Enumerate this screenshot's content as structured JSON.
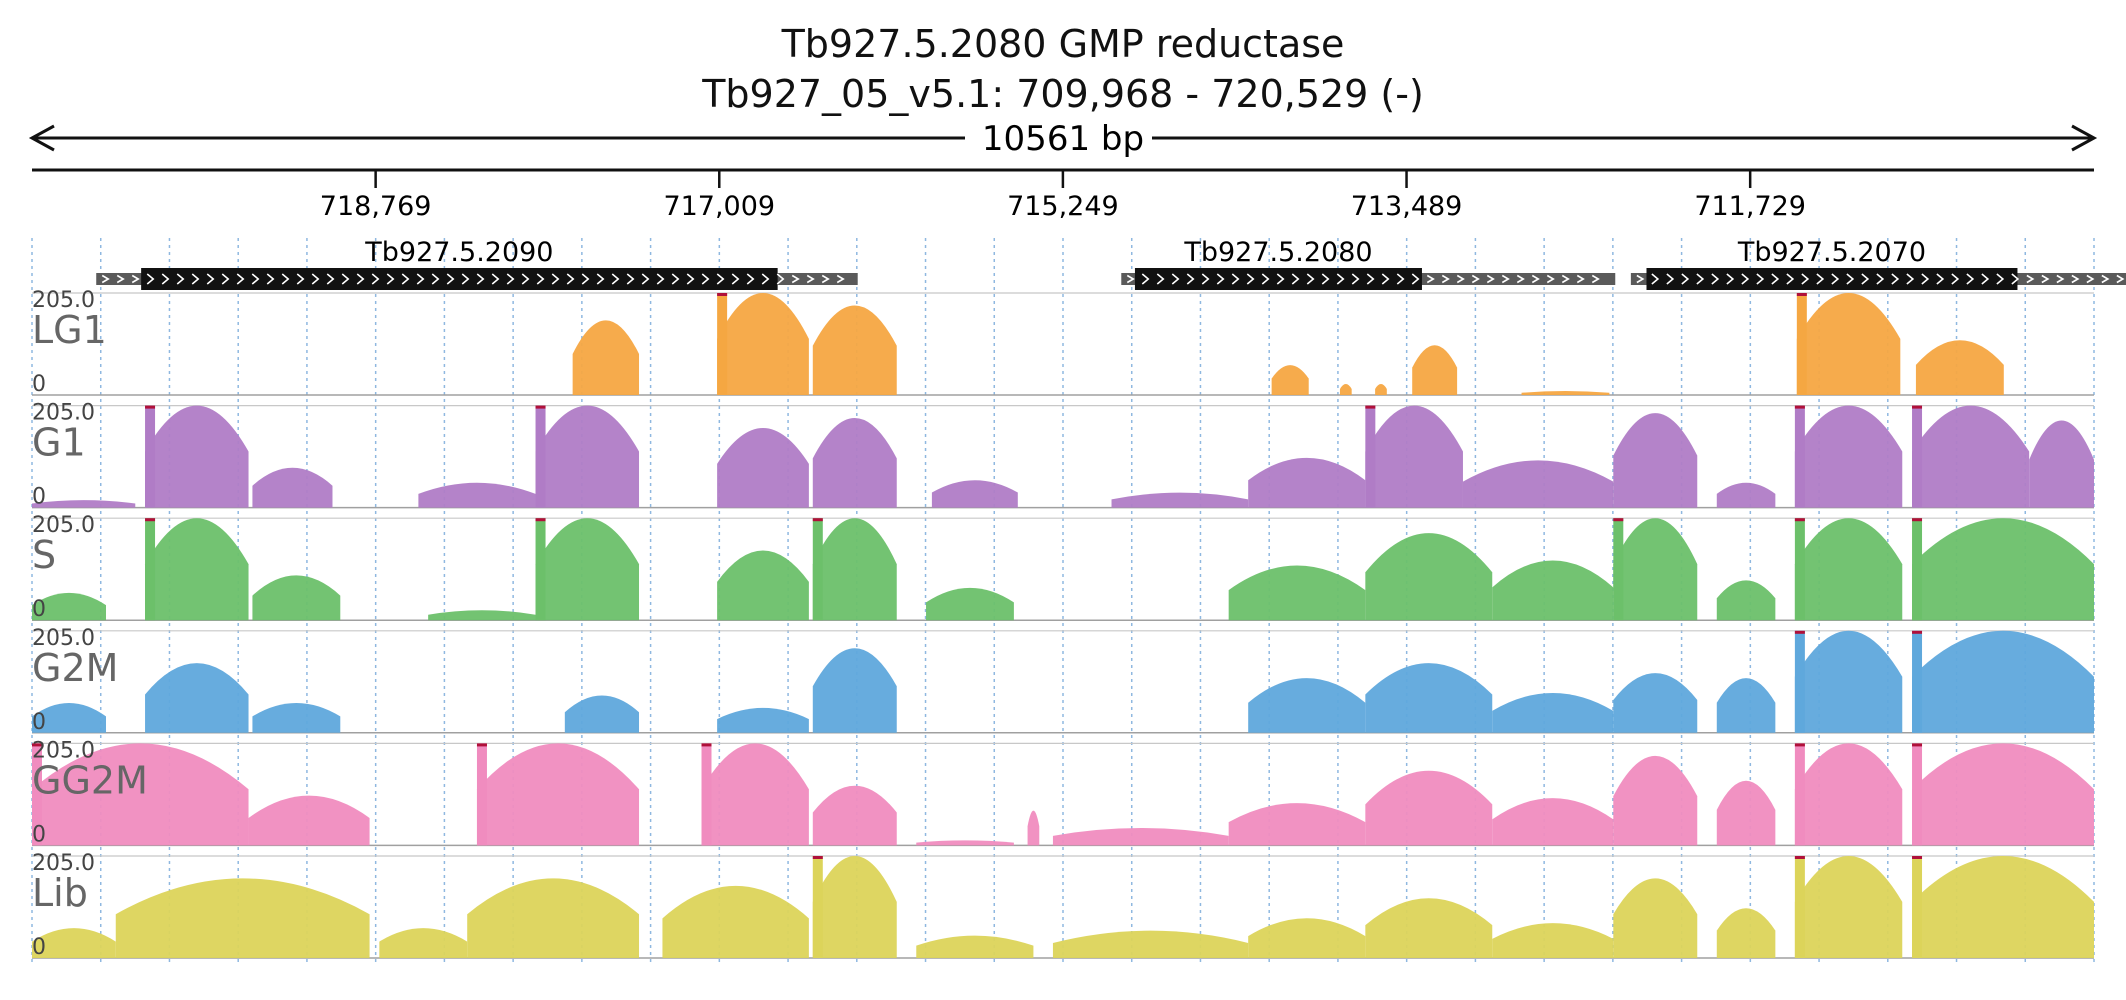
{
  "title": {
    "gene_line": "Tb927.5.2080  GMP reductase",
    "locus_line": "Tb927_05_v5.1: 709,968 - 720,529 (-)"
  },
  "span_label": "10561 bp",
  "axis": {
    "start": 720529,
    "end": 709968,
    "orientation": "reverse",
    "ticks": [
      {
        "value": 718769,
        "label": "718,769"
      },
      {
        "value": 717009,
        "label": "717,009"
      },
      {
        "value": 715249,
        "label": "715,249"
      },
      {
        "value": 713489,
        "label": "713,489"
      },
      {
        "value": 711729,
        "label": "711,729"
      }
    ]
  },
  "genes": [
    {
      "name": "Tb927.5.2090",
      "start": 720200,
      "end": 716300,
      "cds_start": 719970,
      "cds_end": 716710
    },
    {
      "name": "Tb927.5.2080",
      "start": 714950,
      "end": 712420,
      "cds_start": 714880,
      "cds_end": 713410
    },
    {
      "name": "Tb927.5.2070",
      "start": 712340,
      "end": 709780,
      "cds_start": 712260,
      "cds_end": 710360
    }
  ],
  "chart_data": {
    "type": "area",
    "x_range": [
      720529,
      709968
    ],
    "ylim": [
      0,
      205.0
    ],
    "y_tick_labels": [
      "205.0",
      "0"
    ],
    "series": [
      {
        "name": "LG1",
        "color": "#f5a742",
        "peaks": [
          {
            "start": 717760,
            "end": 717420,
            "height": 150
          },
          {
            "start": 717020,
            "end": 716550,
            "height": 205
          },
          {
            "start": 716530,
            "end": 716100,
            "height": 180
          },
          {
            "start": 714180,
            "end": 713990,
            "height": 60
          },
          {
            "start": 713830,
            "end": 713770,
            "height": 22
          },
          {
            "start": 713650,
            "end": 713590,
            "height": 22
          },
          {
            "start": 713460,
            "end": 713230,
            "height": 100
          },
          {
            "start": 712900,
            "end": 712450,
            "height": 8
          },
          {
            "start": 711490,
            "end": 710960,
            "height": 205
          },
          {
            "start": 710880,
            "end": 710430,
            "height": 110
          }
        ]
      },
      {
        "name": "G1",
        "color": "#b07cc6",
        "peaks": [
          {
            "start": 720529,
            "end": 720000,
            "height": 15
          },
          {
            "start": 719950,
            "end": 719420,
            "height": 205
          },
          {
            "start": 719400,
            "end": 718990,
            "height": 80
          },
          {
            "start": 718550,
            "end": 717950,
            "height": 50
          },
          {
            "start": 717950,
            "end": 717420,
            "height": 205
          },
          {
            "start": 717020,
            "end": 716550,
            "height": 160
          },
          {
            "start": 716530,
            "end": 716100,
            "height": 180
          },
          {
            "start": 715920,
            "end": 715480,
            "height": 55
          },
          {
            "start": 715000,
            "end": 714300,
            "height": 30
          },
          {
            "start": 714300,
            "end": 713700,
            "height": 100
          },
          {
            "start": 713700,
            "end": 713200,
            "height": 205
          },
          {
            "start": 713200,
            "end": 712430,
            "height": 95
          },
          {
            "start": 712430,
            "end": 712000,
            "height": 190
          },
          {
            "start": 711900,
            "end": 711600,
            "height": 50
          },
          {
            "start": 711500,
            "end": 710950,
            "height": 205
          },
          {
            "start": 710900,
            "end": 710300,
            "height": 205
          },
          {
            "start": 710300,
            "end": 709968,
            "height": 175
          }
        ]
      },
      {
        "name": "S",
        "color": "#6cc06a",
        "peaks": [
          {
            "start": 720529,
            "end": 720150,
            "height": 55
          },
          {
            "start": 719950,
            "end": 719420,
            "height": 205
          },
          {
            "start": 719400,
            "end": 718950,
            "height": 90
          },
          {
            "start": 718500,
            "end": 717950,
            "height": 20
          },
          {
            "start": 717950,
            "end": 717420,
            "height": 205
          },
          {
            "start": 717020,
            "end": 716550,
            "height": 140
          },
          {
            "start": 716530,
            "end": 716100,
            "height": 205
          },
          {
            "start": 715950,
            "end": 715500,
            "height": 65
          },
          {
            "start": 714400,
            "end": 713700,
            "height": 110
          },
          {
            "start": 713700,
            "end": 713050,
            "height": 175
          },
          {
            "start": 713050,
            "end": 712430,
            "height": 120
          },
          {
            "start": 712430,
            "end": 712000,
            "height": 205
          },
          {
            "start": 711900,
            "end": 711600,
            "height": 80
          },
          {
            "start": 711500,
            "end": 710950,
            "height": 205
          },
          {
            "start": 710900,
            "end": 709968,
            "height": 205
          }
        ]
      },
      {
        "name": "G2M",
        "color": "#5fa8dc",
        "peaks": [
          {
            "start": 720529,
            "end": 720150,
            "height": 60
          },
          {
            "start": 719950,
            "end": 719420,
            "height": 140
          },
          {
            "start": 719400,
            "end": 718950,
            "height": 60
          },
          {
            "start": 717800,
            "end": 717420,
            "height": 75
          },
          {
            "start": 717020,
            "end": 716550,
            "height": 50
          },
          {
            "start": 716530,
            "end": 716100,
            "height": 170
          },
          {
            "start": 714300,
            "end": 713700,
            "height": 110
          },
          {
            "start": 713700,
            "end": 713050,
            "height": 140
          },
          {
            "start": 713050,
            "end": 712430,
            "height": 80
          },
          {
            "start": 712430,
            "end": 712000,
            "height": 120
          },
          {
            "start": 711900,
            "end": 711600,
            "height": 110
          },
          {
            "start": 711500,
            "end": 710950,
            "height": 205
          },
          {
            "start": 710900,
            "end": 709968,
            "height": 205
          }
        ]
      },
      {
        "name": "GG2M",
        "color": "#f08cbf",
        "peaks": [
          {
            "start": 720529,
            "end": 719420,
            "height": 205
          },
          {
            "start": 719420,
            "end": 718800,
            "height": 100
          },
          {
            "start": 718250,
            "end": 717420,
            "height": 205
          },
          {
            "start": 717100,
            "end": 716550,
            "height": 205
          },
          {
            "start": 716530,
            "end": 716100,
            "height": 120
          },
          {
            "start": 716000,
            "end": 715500,
            "height": 10
          },
          {
            "start": 715430,
            "end": 715370,
            "height": 70
          },
          {
            "start": 715300,
            "end": 714400,
            "height": 35
          },
          {
            "start": 714400,
            "end": 713700,
            "height": 85
          },
          {
            "start": 713700,
            "end": 713050,
            "height": 150
          },
          {
            "start": 713050,
            "end": 712430,
            "height": 95
          },
          {
            "start": 712430,
            "end": 712000,
            "height": 180
          },
          {
            "start": 711900,
            "end": 711600,
            "height": 130
          },
          {
            "start": 711500,
            "end": 710950,
            "height": 205
          },
          {
            "start": 710900,
            "end": 709968,
            "height": 205
          }
        ]
      },
      {
        "name": "Lib",
        "color": "#dcd45a",
        "peaks": [
          {
            "start": 720529,
            "end": 720100,
            "height": 60
          },
          {
            "start": 720100,
            "end": 718800,
            "height": 160
          },
          {
            "start": 718750,
            "end": 718300,
            "height": 60
          },
          {
            "start": 718300,
            "end": 717420,
            "height": 160
          },
          {
            "start": 717300,
            "end": 716550,
            "height": 145
          },
          {
            "start": 716530,
            "end": 716100,
            "height": 205
          },
          {
            "start": 716000,
            "end": 715400,
            "height": 45
          },
          {
            "start": 715300,
            "end": 714300,
            "height": 55
          },
          {
            "start": 714300,
            "end": 713700,
            "height": 80
          },
          {
            "start": 713700,
            "end": 713050,
            "height": 120
          },
          {
            "start": 713050,
            "end": 712430,
            "height": 70
          },
          {
            "start": 712430,
            "end": 712000,
            "height": 160
          },
          {
            "start": 711900,
            "end": 711600,
            "height": 100
          },
          {
            "start": 711500,
            "end": 710950,
            "height": 205
          },
          {
            "start": 710900,
            "end": 709968,
            "height": 205
          }
        ]
      }
    ]
  }
}
